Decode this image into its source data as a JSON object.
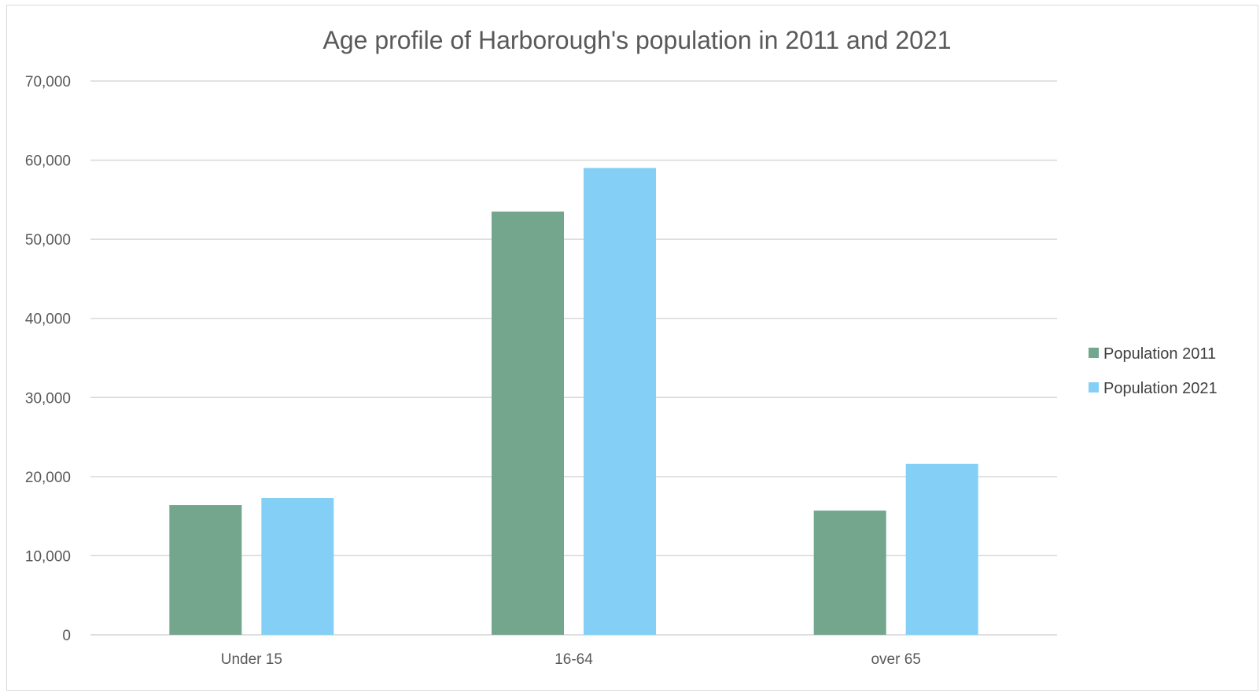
{
  "chart_data": {
    "type": "bar",
    "title": "Age profile of Harborough's population in 2011 and 2021",
    "xlabel": "",
    "ylabel": "",
    "categories": [
      "Under 15",
      "16-64",
      "over 65"
    ],
    "series": [
      {
        "name": "Population 2011",
        "values": [
          16400,
          53500,
          15700
        ],
        "color": "#74a68e"
      },
      {
        "name": "Population 2021",
        "values": [
          17300,
          59000,
          21600
        ],
        "color": "#84cff5"
      }
    ],
    "ylim": [
      0,
      70000
    ],
    "yticks": [
      0,
      10000,
      20000,
      30000,
      40000,
      50000,
      60000,
      70000
    ],
    "ytick_labels": [
      "0",
      "10,000",
      "20,000",
      "30,000",
      "40,000",
      "50,000",
      "60,000",
      "70,000"
    ],
    "grid": true,
    "legend_position": "right"
  },
  "colors": {
    "gridline": "#d9d9d9",
    "text": "#595959",
    "border": "#d9d9d9"
  }
}
